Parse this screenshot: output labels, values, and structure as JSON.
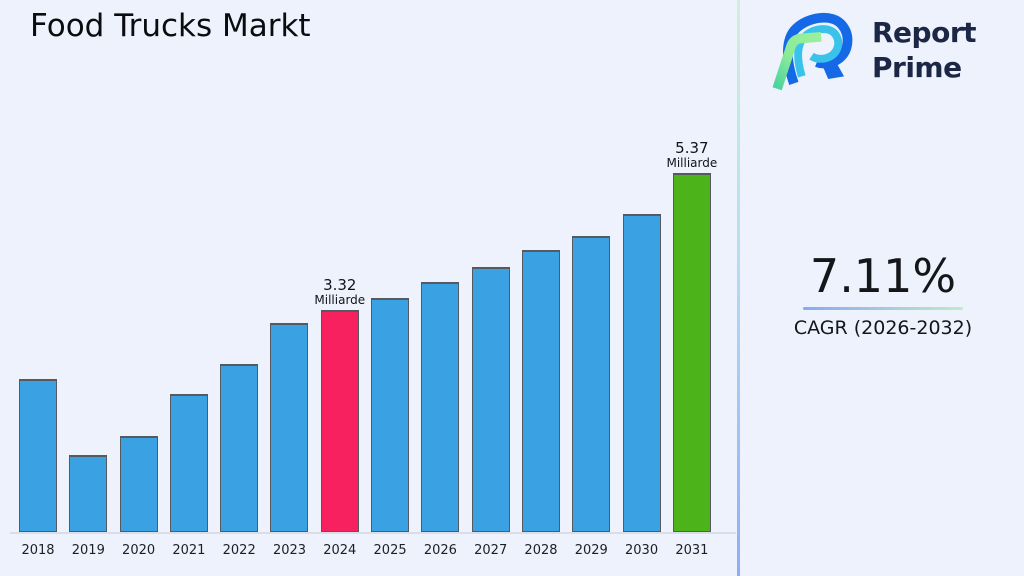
{
  "title": "Food Trucks Markt",
  "logo": {
    "line1": "Report",
    "line2": "Prime",
    "mark_icon": "report-prime-logo-mark"
  },
  "cagr": {
    "value": "7.11%",
    "label": "CAGR (2026-2032)"
  },
  "colors": {
    "background": "#edf2fc",
    "bar_blue": "#3aa2e3",
    "bar_pink": "#f7215f",
    "bar_green": "#4db31a",
    "bar_border": "#565a60",
    "divider_top": "#cdf2d6",
    "divider_bottom": "#8fadf6",
    "underline_left": "#88a9f2",
    "underline_right": "#b9eec6",
    "logo_text": "#1c2746"
  },
  "chart_data": {
    "type": "bar",
    "title": "Food Trucks Markt",
    "xlabel": "",
    "ylabel": "",
    "unit": "Milliarde",
    "categories": [
      "2018",
      "2019",
      "2020",
      "2021",
      "2022",
      "2023",
      "2024",
      "2025",
      "2026",
      "2027",
      "2028",
      "2029",
      "2030",
      "2031"
    ],
    "values": [
      2.28,
      1.15,
      1.43,
      2.06,
      2.51,
      3.13,
      3.32,
      3.5,
      3.73,
      3.96,
      4.22,
      4.43,
      4.75,
      5.37
    ],
    "ylim": [
      0,
      5.5
    ],
    "grid": false,
    "legend": false,
    "highlights": {
      "2024": {
        "color": "#f7215f"
      },
      "2031": {
        "color": "#4db31a"
      }
    },
    "annotations": {
      "2024": {
        "value": "3.32",
        "unit": "Milliarde"
      },
      "2031": {
        "value": "5.37",
        "unit": "Milliarde"
      }
    }
  }
}
